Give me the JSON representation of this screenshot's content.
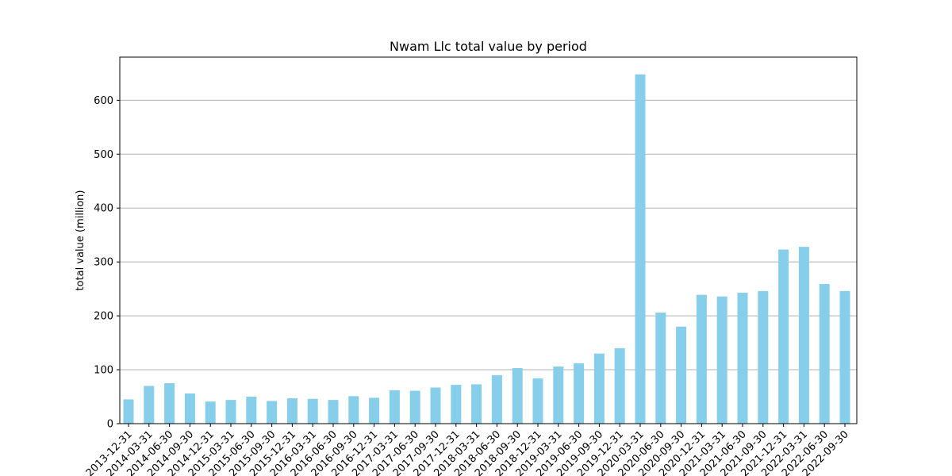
{
  "chart_data": {
    "type": "bar",
    "title": "Nwam Llc total value by period",
    "xlabel": "",
    "ylabel": "total value (million)",
    "ylim": [
      0,
      680
    ],
    "yticks": [
      0,
      100,
      200,
      300,
      400,
      500,
      600
    ],
    "grid": "y",
    "bar_color": "#87ceeb",
    "categories": [
      "2013-12-31",
      "2014-03-31",
      "2014-06-30",
      "2014-09-30",
      "2014-12-31",
      "2015-03-31",
      "2015-06-30",
      "2015-09-30",
      "2015-12-31",
      "2016-03-31",
      "2016-06-30",
      "2016-09-30",
      "2016-12-31",
      "2017-03-31",
      "2017-06-30",
      "2017-09-30",
      "2017-12-31",
      "2018-03-31",
      "2018-06-30",
      "2018-09-30",
      "2018-12-31",
      "2019-03-31",
      "2019-06-30",
      "2019-09-30",
      "2019-12-31",
      "2020-03-31",
      "2020-06-30",
      "2020-09-30",
      "2020-12-31",
      "2021-03-31",
      "2021-06-30",
      "2021-09-30",
      "2021-12-31",
      "2022-03-31",
      "2022-06-30",
      "2022-09-30"
    ],
    "values": [
      45,
      70,
      75,
      56,
      41,
      44,
      50,
      42,
      47,
      46,
      44,
      51,
      48,
      62,
      61,
      67,
      72,
      73,
      90,
      103,
      84,
      106,
      112,
      130,
      140,
      648,
      206,
      180,
      239,
      236,
      243,
      246,
      323,
      328,
      259,
      246
    ]
  }
}
